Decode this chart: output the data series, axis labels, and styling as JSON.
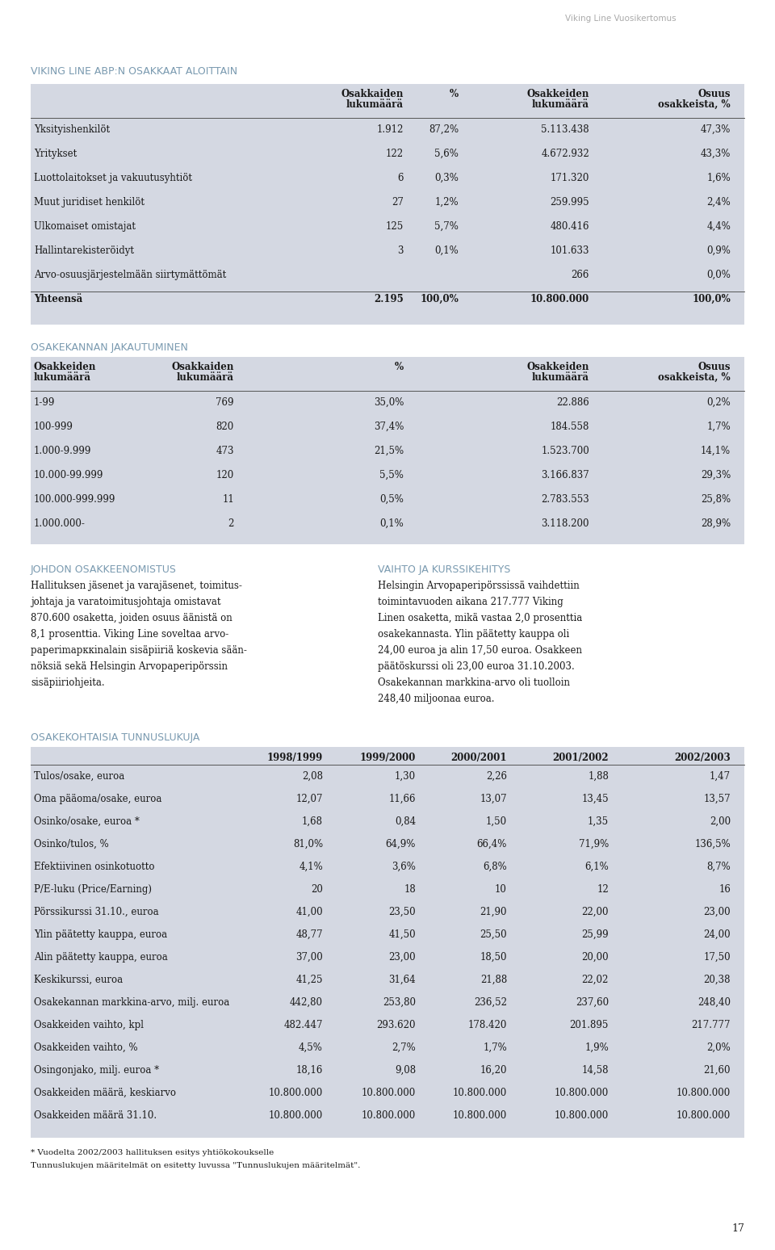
{
  "page_title": "Viking Line Vuosikertomus",
  "page_number": "17",
  "bg_color": "#ffffff",
  "table_bg": "#d4d8e2",
  "section_title_color": "#7a9ab0",
  "text_color": "#1a1a1a",
  "body_text_color": "#1a1a1a",
  "header_line_color": "#444444",
  "section1_title": "VIKING LINE ABP:N OSAKKAAT ALOITTAIN",
  "table1_header_texts": [
    "",
    "Osakkaiden\nlukumäärä",
    "%",
    "Osakkeiden\nlukumäärä",
    "Osuus\nosakkeista, %"
  ],
  "table1_rows": [
    [
      "Yksityishenkilöt",
      "1.912",
      "87,2%",
      "5.113.438",
      "47,3%"
    ],
    [
      "Yritykset",
      "122",
      "5,6%",
      "4.672.932",
      "43,3%"
    ],
    [
      "Luottolaitokset ja vakuutusyhtiöt",
      "6",
      "0,3%",
      "171.320",
      "1,6%"
    ],
    [
      "Muut juridiset henkilöt",
      "27",
      "1,2%",
      "259.995",
      "2,4%"
    ],
    [
      "Ulkomaiset omistajat",
      "125",
      "5,7%",
      "480.416",
      "4,4%"
    ],
    [
      "Hallintarekisteröidyt",
      "3",
      "0,1%",
      "101.633",
      "0,9%"
    ],
    [
      "Arvo-osuusjärjestelmään siirtymättömät",
      "",
      "",
      "266",
      "0,0%"
    ],
    [
      "Yhteensä",
      "2.195",
      "100,0%",
      "10.800.000",
      "100,0%"
    ]
  ],
  "section2_title": "OSAKEKANNAN JAKAUTUMINEN",
  "table2_header_texts": [
    "Osakkeiden\nlukumäärä",
    "Osakkaiden\nlukumäärä",
    "%",
    "Osakkeiden\nlukumäärä",
    "Osuus\nosakkeista, %"
  ],
  "table2_rows": [
    [
      "1-99",
      "769",
      "35,0%",
      "22.886",
      "0,2%"
    ],
    [
      "100-999",
      "820",
      "37,4%",
      "184.558",
      "1,7%"
    ],
    [
      "1.000-9.999",
      "473",
      "21,5%",
      "1.523.700",
      "14,1%"
    ],
    [
      "10.000-99.999",
      "120",
      "5,5%",
      "3.166.837",
      "29,3%"
    ],
    [
      "100.000-999.999",
      "11",
      "0,5%",
      "2.783.553",
      "25,8%"
    ],
    [
      "1.000.000-",
      "2",
      "0,1%",
      "3.118.200",
      "28,9%"
    ]
  ],
  "section3_title": "JOHDON OSAKKEENOMISTUS",
  "section3_lines": [
    "Hallituksen jäsenet ja varajäsenet, toimitus-",
    "johtaja ja varatoimitusjohtaja omistavat",
    "870.600 osaketta, joiden osuus äänistä on",
    "8,1 prosenttia. Viking Line soveltaa arvo-",
    "paperimарккinalain sisäpiiriä koskevia sään-",
    "nöksiä sekä Helsingin Arvopaperipörssin",
    "sisäpiiriohjeita."
  ],
  "section4_title": "VAIHTO JA KURSSIKEHITYS",
  "section4_lines": [
    "Helsingin Arvopaperipörssissä vaihdettiin",
    "toimintavuoden aikana 217.777 Viking",
    "Linen osaketta, mikä vastaa 2,0 prosenttia",
    "osakekannasta. Ylin päätetty kauppa oli",
    "24,00 euroa ja alin 17,50 euroa. Osakkeen",
    "päätöskurssi oli 23,00 euroa 31.10.2003.",
    "Osakekannan markkina-arvo oli tuolloin",
    "248,40 miljoonaa euroa."
  ],
  "section5_title": "OSAKEKOHTAISIA TUNNUSLUKUJA",
  "table3_header_texts": [
    "",
    "1998/1999",
    "1999/2000",
    "2000/2001",
    "2001/2002",
    "2002/2003"
  ],
  "table3_rows": [
    [
      "Tulos/osake, euroa",
      "2,08",
      "1,30",
      "2,26",
      "1,88",
      "1,47"
    ],
    [
      "Oma pääoma/osake, euroa",
      "12,07",
      "11,66",
      "13,07",
      "13,45",
      "13,57"
    ],
    [
      "Osinko/osake, euroa *",
      "1,68",
      "0,84",
      "1,50",
      "1,35",
      "2,00"
    ],
    [
      "Osinko/tulos, %",
      "81,0%",
      "64,9%",
      "66,4%",
      "71,9%",
      "136,5%"
    ],
    [
      "Efektiivinen osinkotuotto",
      "4,1%",
      "3,6%",
      "6,8%",
      "6,1%",
      "8,7%"
    ],
    [
      "P/E-luku (Price/Earning)",
      "20",
      "18",
      "10",
      "12",
      "16"
    ],
    [
      "Pörssikurssi 31.10., euroa",
      "41,00",
      "23,50",
      "21,90",
      "22,00",
      "23,00"
    ],
    [
      "Ylin päätetty kauppa, euroa",
      "48,77",
      "41,50",
      "25,50",
      "25,99",
      "24,00"
    ],
    [
      "Alin päätetty kauppa, euroa",
      "37,00",
      "23,00",
      "18,50",
      "20,00",
      "17,50"
    ],
    [
      "Keskikurssi, euroa",
      "41,25",
      "31,64",
      "21,88",
      "22,02",
      "20,38"
    ],
    [
      "Osakekannan markkina-arvo, milj. euroa",
      "442,80",
      "253,80",
      "236,52",
      "237,60",
      "248,40"
    ],
    [
      "Osakkeiden vaihto, kpl",
      "482.447",
      "293.620",
      "178.420",
      "201.895",
      "217.777"
    ],
    [
      "Osakkeiden vaihto, %",
      "4,5%",
      "2,7%",
      "1,7%",
      "1,9%",
      "2,0%"
    ],
    [
      "Osingonjako, milj. euroa *",
      "18,16",
      "9,08",
      "16,20",
      "14,58",
      "21,60"
    ],
    [
      "Osakkeiden määrä, keskiarvo",
      "10.800.000",
      "10.800.000",
      "10.800.000",
      "10.800.000",
      "10.800.000"
    ],
    [
      "Osakkeiden määrä 31.10.",
      "10.800.000",
      "10.800.000",
      "10.800.000",
      "10.800.000",
      "10.800.000"
    ]
  ],
  "table3_footnotes": [
    "* Vuodelta 2002/2003 hallituksen esitys yhtiökokoukselle",
    "Tunnuslukujen määritelmät on esitetty luvussa \"Tunnuslukujen määritelmät\"."
  ]
}
